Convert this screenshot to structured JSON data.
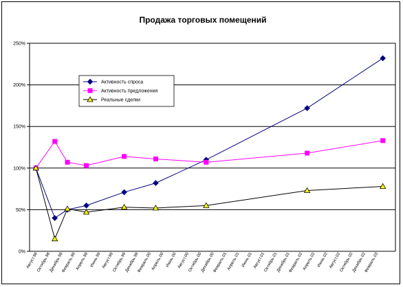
{
  "chart_data": {
    "type": "line",
    "title": "Продажа торговых помещений",
    "xlabel": "",
    "ylabel": "",
    "ylim": [
      0,
      250
    ],
    "y_ticks": [
      "0%",
      "50%",
      "100%",
      "150%",
      "200%",
      "250%"
    ],
    "y_tick_values": [
      0,
      50,
      100,
      150,
      200,
      250
    ],
    "y_unit": "%",
    "grid": "horizontal",
    "legend_position": "upper-left inside plot",
    "categories": [
      "Август.98",
      "Октябрь.98",
      "Декабрь.98",
      "Февраль.99",
      "Апрель.99",
      "Июнь.99",
      "Август.99",
      "Октябрь.99",
      "Декабрь.99",
      "Февраль.00",
      "Апрель.00",
      "Июнь.00",
      "Август.00",
      "Октябрь.00",
      "Декабрь.00",
      "Февраль.01",
      "Апрель.01",
      "Июнь.01",
      "Август.01",
      "Октябрь.01",
      "Декабрь.01",
      "Февраль.02",
      "Апрель.02",
      "Июнь.02",
      "Август.02",
      "Октябрь.02",
      "Декабрь.02",
      "Февраль.03"
    ],
    "x_total_slots": 29,
    "series": [
      {
        "name": "Активность спроса",
        "color": "#000080",
        "marker": "diamond",
        "points": [
          {
            "x": 0,
            "y": 100
          },
          {
            "x": 1.5,
            "y": 40
          },
          {
            "x": 2.5,
            "y": 50
          },
          {
            "x": 4,
            "y": 55
          },
          {
            "x": 7,
            "y": 71
          },
          {
            "x": 9.5,
            "y": 82
          },
          {
            "x": 13.5,
            "y": 110
          },
          {
            "x": 21.5,
            "y": 172
          },
          {
            "x": 27.5,
            "y": 232
          }
        ]
      },
      {
        "name": "Активность предложения",
        "color": "#FF00FF",
        "marker": "square",
        "points": [
          {
            "x": 0,
            "y": 100
          },
          {
            "x": 1.5,
            "y": 132
          },
          {
            "x": 2.5,
            "y": 107
          },
          {
            "x": 4,
            "y": 103
          },
          {
            "x": 7,
            "y": 114
          },
          {
            "x": 9.5,
            "y": 111
          },
          {
            "x": 13.5,
            "y": 107
          },
          {
            "x": 21.5,
            "y": 118
          },
          {
            "x": 27.5,
            "y": 133
          }
        ]
      },
      {
        "name": "Реальные сделки",
        "color": "#000000",
        "marker": "triangle",
        "marker_fill": "#FFFF00",
        "points": [
          {
            "x": 0,
            "y": 100
          },
          {
            "x": 1.5,
            "y": 15
          },
          {
            "x": 2.5,
            "y": 51
          },
          {
            "x": 4,
            "y": 47
          },
          {
            "x": 7,
            "y": 53
          },
          {
            "x": 9.5,
            "y": 52
          },
          {
            "x": 13.5,
            "y": 55
          },
          {
            "x": 21.5,
            "y": 73
          },
          {
            "x": 27.5,
            "y": 78
          }
        ]
      }
    ]
  }
}
